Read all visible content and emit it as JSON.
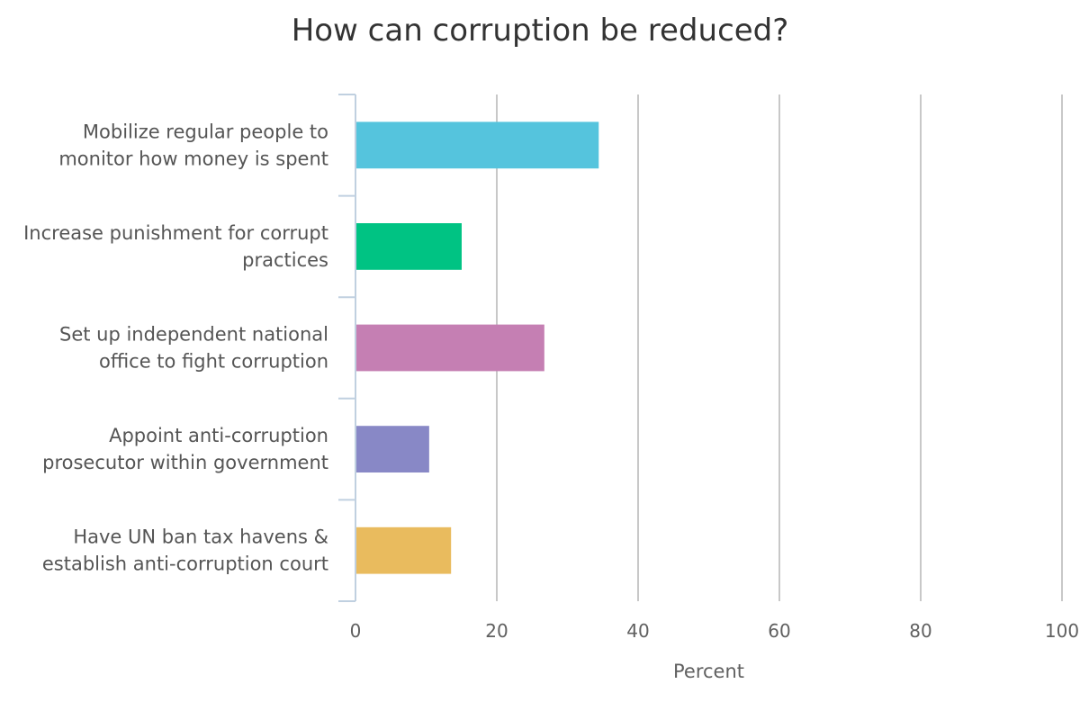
{
  "chart_data": {
    "type": "bar",
    "orientation": "horizontal",
    "title": "How can corruption be reduced?",
    "xlabel": "Percent",
    "ylabel": "",
    "categories": [
      [
        "Mobilize regular people to",
        "monitor how money is spent"
      ],
      [
        "Increase punishment for corrupt",
        "practices"
      ],
      [
        "Set up independent national",
        "office to fight corruption"
      ],
      [
        "Appoint anti-corruption",
        "prosecutor within government"
      ],
      [
        "Have UN ban tax havens &",
        "establish anti-corruption court"
      ]
    ],
    "values": [
      34.3,
      14.9,
      26.6,
      10.3,
      13.4
    ],
    "colors": [
      "#55c4dd",
      "#00c383",
      "#c57fb3",
      "#8888c6",
      "#e9bb5e"
    ],
    "xlim": [
      0,
      100
    ],
    "xticks": [
      "0",
      "20",
      "40",
      "60",
      "80",
      "100"
    ],
    "grid": true,
    "legend": "none"
  }
}
